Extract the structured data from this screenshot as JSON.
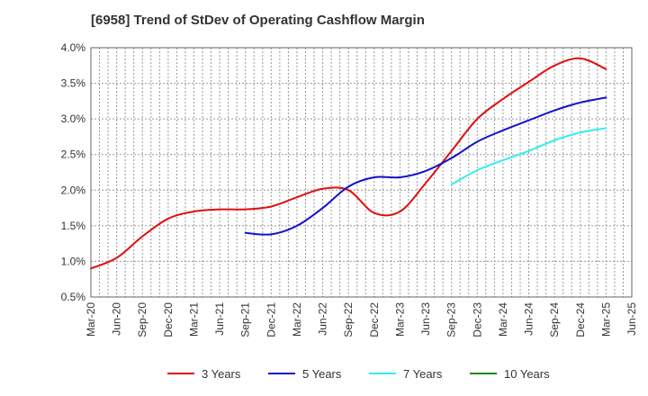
{
  "chart_data": {
    "type": "line",
    "title": "[6958]  Trend of StDev of Operating Cashflow Margin",
    "xlabel": "",
    "ylabel": "",
    "ylim": [
      0.5,
      4.0
    ],
    "yticks": [
      "0.5%",
      "1.0%",
      "1.5%",
      "2.0%",
      "2.5%",
      "3.0%",
      "3.5%",
      "4.0%"
    ],
    "ytick_values": [
      0.5,
      1.0,
      1.5,
      2.0,
      2.5,
      3.0,
      3.5,
      4.0
    ],
    "grid": true,
    "legend_position": "bottom",
    "x": [
      "Mar-20",
      "Jun-20",
      "Sep-20",
      "Dec-20",
      "Mar-21",
      "Jun-21",
      "Sep-21",
      "Dec-21",
      "Mar-22",
      "Jun-22",
      "Sep-22",
      "Dec-22",
      "Mar-23",
      "Jun-23",
      "Sep-23",
      "Dec-23",
      "Mar-24",
      "Jun-24",
      "Sep-24",
      "Dec-24",
      "Mar-25",
      "Jun-25"
    ],
    "series": [
      {
        "name": "3 Years",
        "color": "#dd1111",
        "values": [
          0.9,
          1.05,
          1.35,
          1.6,
          1.7,
          1.73,
          1.73,
          1.77,
          1.9,
          2.02,
          2.0,
          1.68,
          1.7,
          2.1,
          2.55,
          3.0,
          3.28,
          3.52,
          3.75,
          3.85,
          3.7,
          null
        ]
      },
      {
        "name": "5 Years",
        "color": "#1111cc",
        "values": [
          null,
          null,
          null,
          null,
          null,
          null,
          1.4,
          1.38,
          1.5,
          1.75,
          2.05,
          2.18,
          2.18,
          2.27,
          2.45,
          2.68,
          2.84,
          2.98,
          3.12,
          3.23,
          3.3,
          null
        ]
      },
      {
        "name": "7 Years",
        "color": "#33eeee",
        "values": [
          null,
          null,
          null,
          null,
          null,
          null,
          null,
          null,
          null,
          null,
          null,
          null,
          null,
          null,
          2.08,
          2.28,
          2.42,
          2.55,
          2.7,
          2.81,
          2.87,
          null
        ]
      },
      {
        "name": "10 Years",
        "color": "#118811",
        "values": [
          null,
          null,
          null,
          null,
          null,
          null,
          null,
          null,
          null,
          null,
          null,
          null,
          null,
          null,
          null,
          null,
          null,
          null,
          null,
          null,
          null,
          null
        ]
      }
    ]
  }
}
